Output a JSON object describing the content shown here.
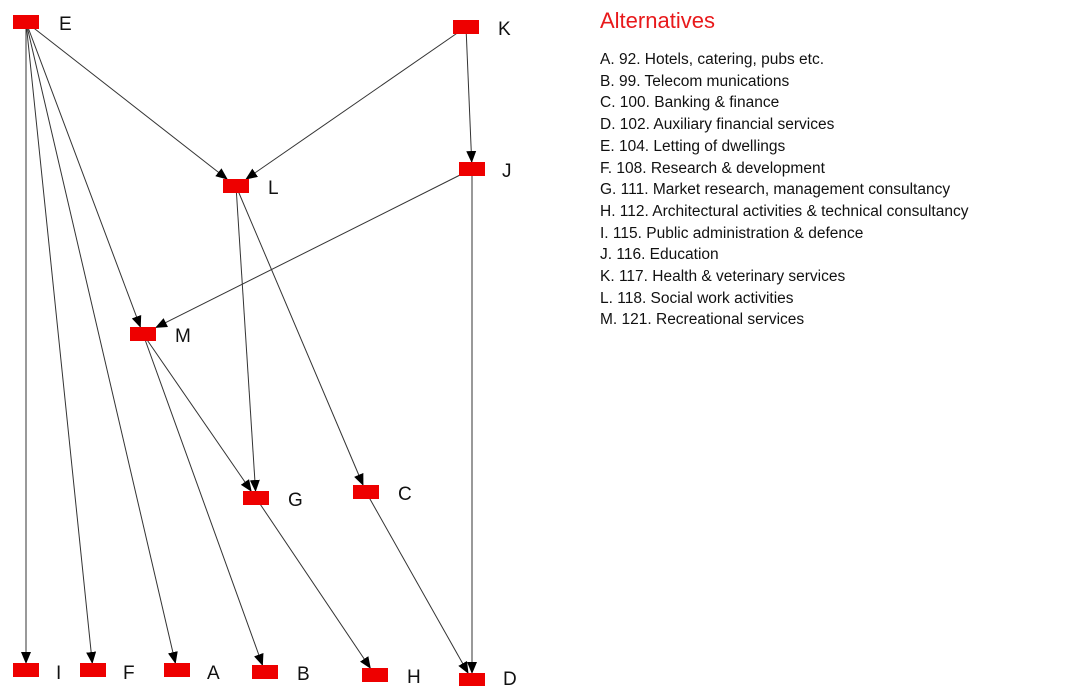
{
  "legend": {
    "title": "Alternatives",
    "items": [
      "A. 92. Hotels,  catering,  pubs etc.",
      "B. 99. Telecom munications",
      "C. 100. Banking  & finance",
      "D. 102. Auxiliary  financial  services",
      "E. 104. Letting of  dwellings",
      "F. 108. Research &  development",
      "G. 111. Market research,  management  consultancy",
      "H. 112. Architectural  activities & technical  consultancy",
      "I. 115. Public  administration  & defence",
      "J. 116. Education",
      "K. 117. Health &  veterinary  services",
      "L. 118. Social work  activities",
      "M. 121. Recreational  services"
    ]
  },
  "colors": {
    "node": "#ee0000",
    "edge": "#333333",
    "title": "#e8191b"
  },
  "graph": {
    "nodes": [
      "E",
      "K",
      "L",
      "J",
      "M",
      "G",
      "C",
      "I",
      "F",
      "A",
      "B",
      "H",
      "D"
    ],
    "edges": [
      [
        "E",
        "L"
      ],
      [
        "E",
        "M"
      ],
      [
        "E",
        "I"
      ],
      [
        "E",
        "F"
      ],
      [
        "E",
        "A"
      ],
      [
        "K",
        "L"
      ],
      [
        "K",
        "J"
      ],
      [
        "J",
        "M"
      ],
      [
        "J",
        "D"
      ],
      [
        "L",
        "G"
      ],
      [
        "L",
        "C"
      ],
      [
        "M",
        "G"
      ],
      [
        "M",
        "B"
      ],
      [
        "G",
        "H"
      ],
      [
        "C",
        "D"
      ]
    ]
  }
}
